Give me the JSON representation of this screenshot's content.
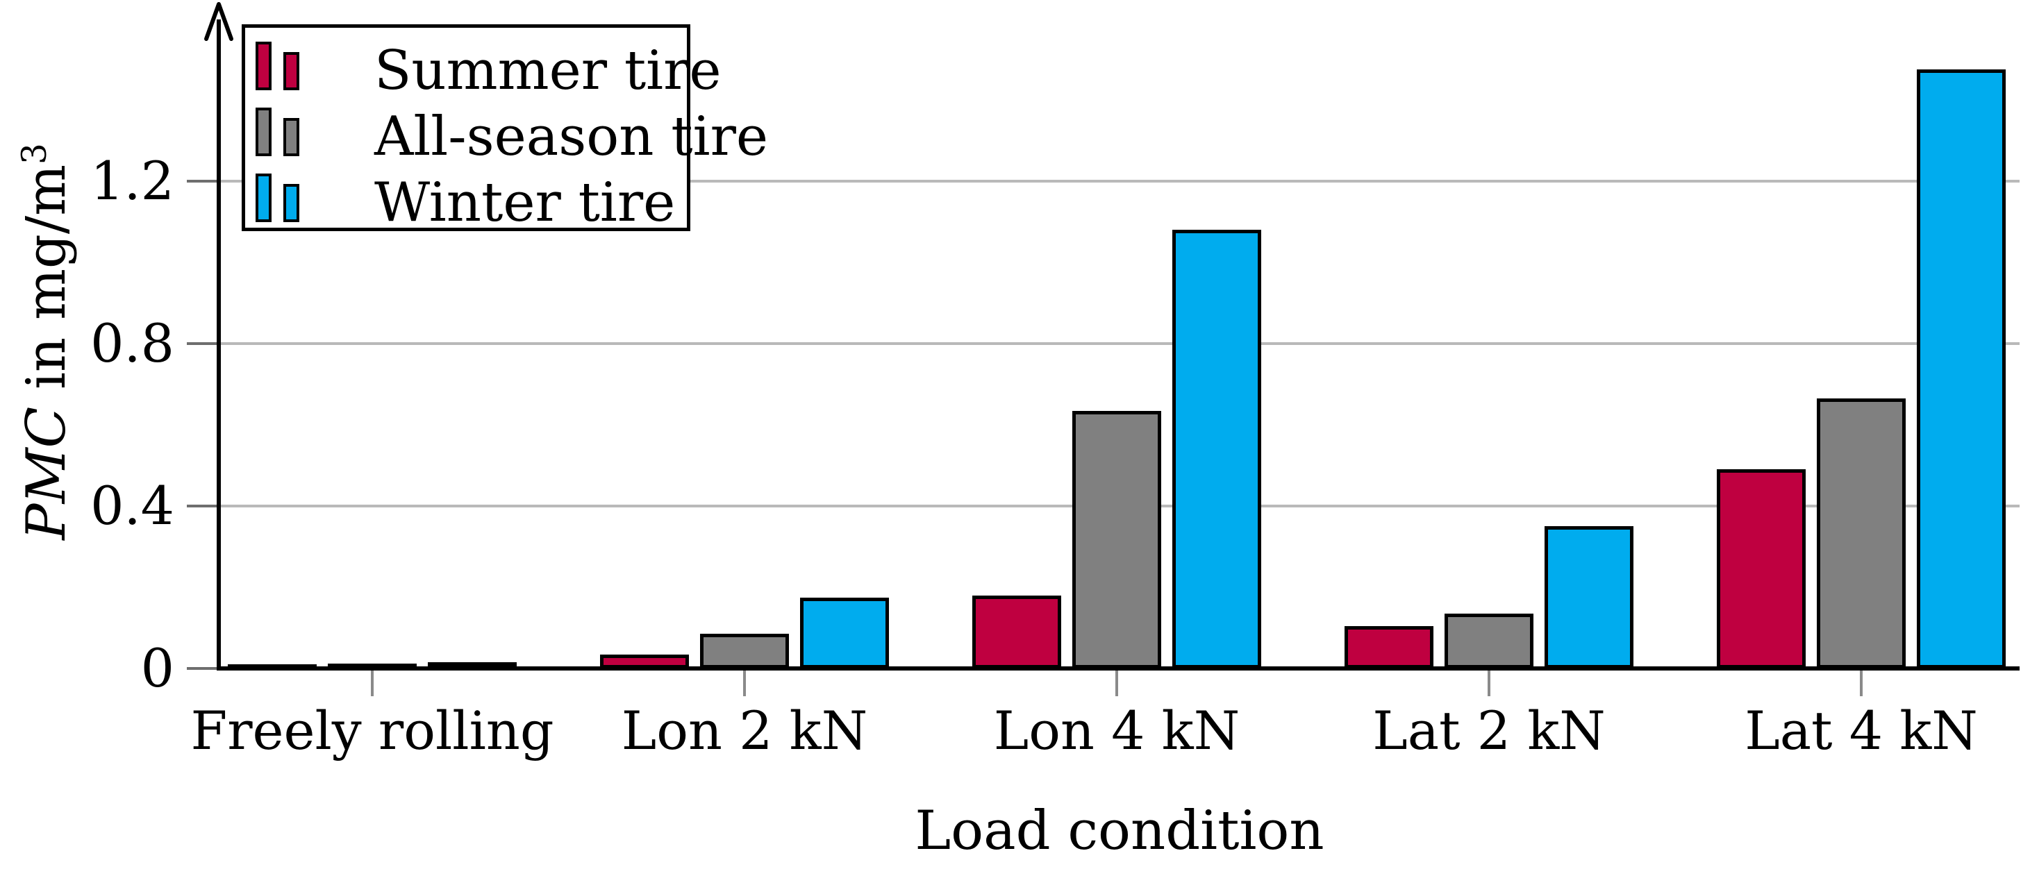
{
  "chart_data": {
    "type": "bar",
    "title": "",
    "xlabel": "Load condition",
    "ylabel": "PMC in mg/m^3",
    "ylabel_parts": {
      "italic": "PMC",
      "text": " in mg/m",
      "sup": "3"
    },
    "categories": [
      "Freely rolling",
      "Lon 2 kN",
      "Lon 4 kN",
      "Lat 2 kN",
      "Lat 4 kN"
    ],
    "series": [
      {
        "name": "Summer tire",
        "color": "#bf0040",
        "values": [
          0.005,
          0.035,
          0.18,
          0.105,
          0.49
        ]
      },
      {
        "name": "All-season tire",
        "color": "#808080",
        "values": [
          0.007,
          0.085,
          0.635,
          0.135,
          0.665
        ]
      },
      {
        "name": "Winter tire",
        "color": "#00acee",
        "values": [
          0.01,
          0.175,
          1.08,
          0.35,
          1.475
        ]
      }
    ],
    "yticks": [
      {
        "value": 0,
        "label": "0"
      },
      {
        "value": 0.4,
        "label": "0.4"
      },
      {
        "value": 0.8,
        "label": "0.8"
      },
      {
        "value": 1.2,
        "label": "1.2"
      }
    ],
    "ylim": [
      0,
      1.6
    ],
    "grid": "horizontal",
    "grid_color": "#b9b9b9",
    "bar_outline_color": "#000000",
    "axis_color": "#000000",
    "legend_position": "top-left"
  }
}
